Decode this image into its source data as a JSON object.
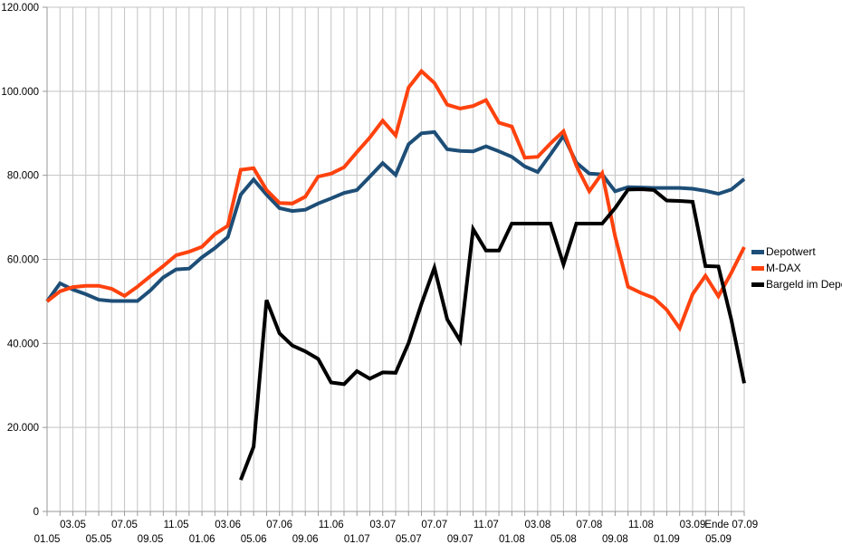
{
  "chart_data": {
    "type": "line",
    "title": "",
    "xlabel": "",
    "ylabel": "",
    "ylim": [
      0,
      120000
    ],
    "grid": true,
    "legend_position": "right",
    "y_tick_labels": [
      "0",
      "20.000",
      "40.000",
      "60.000",
      "80.000",
      "100.000",
      "120.000"
    ],
    "x_tick_labels_row_upper": [
      "03.05",
      "07.05",
      "11.05",
      "03.06",
      "07.06",
      "11.06",
      "03.07",
      "07.07",
      "11.07",
      "03.08",
      "07.08",
      "11.08",
      "03.09",
      "Ende 07.09"
    ],
    "x_tick_labels_row_lower": [
      "01.05",
      "05.05",
      "09.05",
      "01.06",
      "05.06",
      "09.06",
      "01.07",
      "05.07",
      "09.07",
      "01.08",
      "05.08",
      "09.08",
      "01.09",
      "05.09"
    ],
    "categories": [
      "01.05",
      "02.05",
      "03.05",
      "04.05",
      "05.05",
      "06.05",
      "07.05",
      "08.05",
      "09.05",
      "10.05",
      "11.05",
      "12.05",
      "01.06",
      "02.06",
      "03.06",
      "04.06",
      "05.06",
      "06.06",
      "07.06",
      "08.06",
      "09.06",
      "10.06",
      "11.06",
      "12.06",
      "01.07",
      "02.07",
      "03.07",
      "04.07",
      "05.07",
      "06.07",
      "07.07",
      "08.07",
      "09.07",
      "10.07",
      "11.07",
      "12.07",
      "01.08",
      "02.08",
      "03.08",
      "04.08",
      "05.08",
      "06.08",
      "07.08",
      "08.08",
      "09.08",
      "10.08",
      "11.08",
      "12.08",
      "01.09",
      "02.09",
      "03.09",
      "04.09",
      "05.09",
      "06.09",
      "07.09"
    ],
    "series": [
      {
        "name": "Depotwert",
        "color": "#1D4E77",
        "values": [
          50000,
          54300,
          52800,
          51700,
          50400,
          50100,
          50100,
          50100,
          52600,
          55700,
          57600,
          57800,
          60500,
          62700,
          65300,
          75400,
          79000,
          75400,
          72200,
          71500,
          71800,
          73300,
          74500,
          75800,
          76500,
          79700,
          82900,
          80100,
          87400,
          90000,
          90300,
          86200,
          85800,
          85700,
          86900,
          85700,
          84400,
          82100,
          80800,
          85000,
          89400,
          83000,
          80400,
          80200,
          76200,
          77200,
          77100,
          77000,
          77000,
          77000,
          76800,
          76300,
          75600,
          76600,
          79100
        ]
      },
      {
        "name": "M-DAX",
        "color": "#FF420E",
        "values": [
          50000,
          52400,
          53400,
          53700,
          53700,
          53000,
          51300,
          53500,
          56000,
          58400,
          61000,
          61800,
          63000,
          66000,
          68000,
          81300,
          81700,
          76500,
          73400,
          73300,
          74900,
          79700,
          80400,
          81900,
          85500,
          89000,
          93000,
          89500,
          100900,
          104800,
          102000,
          96800,
          95900,
          96500,
          97900,
          92500,
          91600,
          84200,
          84400,
          87600,
          90500,
          82300,
          76200,
          80500,
          65500,
          53500,
          52000,
          50800,
          48000,
          43600,
          51700,
          56100,
          51200,
          56800,
          62900
        ]
      },
      {
        "name": "Bargeld im Depot",
        "color": "#000000",
        "values": [
          null,
          null,
          null,
          null,
          null,
          null,
          null,
          null,
          null,
          null,
          null,
          null,
          null,
          null,
          null,
          7500,
          15400,
          50300,
          42400,
          39500,
          38100,
          36300,
          30700,
          30300,
          33400,
          31600,
          33100,
          33000,
          40100,
          49400,
          58000,
          45700,
          40600,
          67200,
          62100,
          62100,
          68500,
          68500,
          68500,
          68500,
          58800,
          68500,
          68500,
          68500,
          72200,
          76600,
          76700,
          76500,
          74000,
          73900,
          73700,
          58400,
          58300,
          45700,
          30500
        ]
      }
    ],
    "colors": {
      "gridline": "#C3C3C3",
      "axis": "#9A9A9A",
      "background": "#FFFFFF",
      "text": "#000000"
    }
  }
}
